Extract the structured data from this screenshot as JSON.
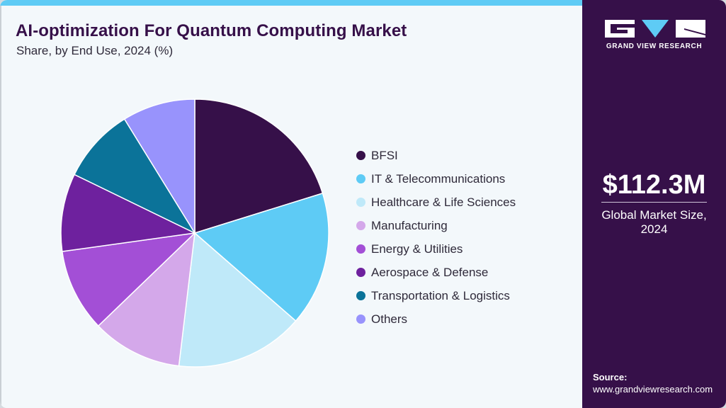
{
  "header": {
    "title": "AI-optimization For Quantum Computing Market",
    "subtitle": "Share, by End Use, 2024 (%)"
  },
  "sidebar": {
    "logo_text": "GRAND VIEW RESEARCH",
    "market_value": "$112.3M",
    "market_label_line1": "Global Market Size,",
    "market_label_line2": "2024",
    "source_label": "Source:",
    "source_url": "www.grandviewresearch.com"
  },
  "colors": {
    "brand": "#361049",
    "accent": "#5ecbf5",
    "background": "#f3f8fb"
  },
  "chart_data": {
    "type": "pie",
    "title": "AI-optimization For Quantum Computing Market",
    "subtitle": "Share, by End Use, 2024 (%)",
    "legend_position": "right",
    "start_angle_deg": 0,
    "direction": "clockwise",
    "categories": [
      "BFSI",
      "IT & Telecommunications",
      "Healthcare & Life Sciences",
      "Manufacturing",
      "Energy & Utilities",
      "Aerospace & Defense",
      "Transportation & Logistics",
      "Others"
    ],
    "values": [
      20.2,
      16.2,
      15.5,
      10.9,
      10.0,
      9.4,
      9.0,
      8.8
    ],
    "colors": [
      "#361049",
      "#5ecbf5",
      "#bfe9f9",
      "#d4a8ea",
      "#a34fd6",
      "#6e219e",
      "#0b7399",
      "#9893fc"
    ]
  }
}
